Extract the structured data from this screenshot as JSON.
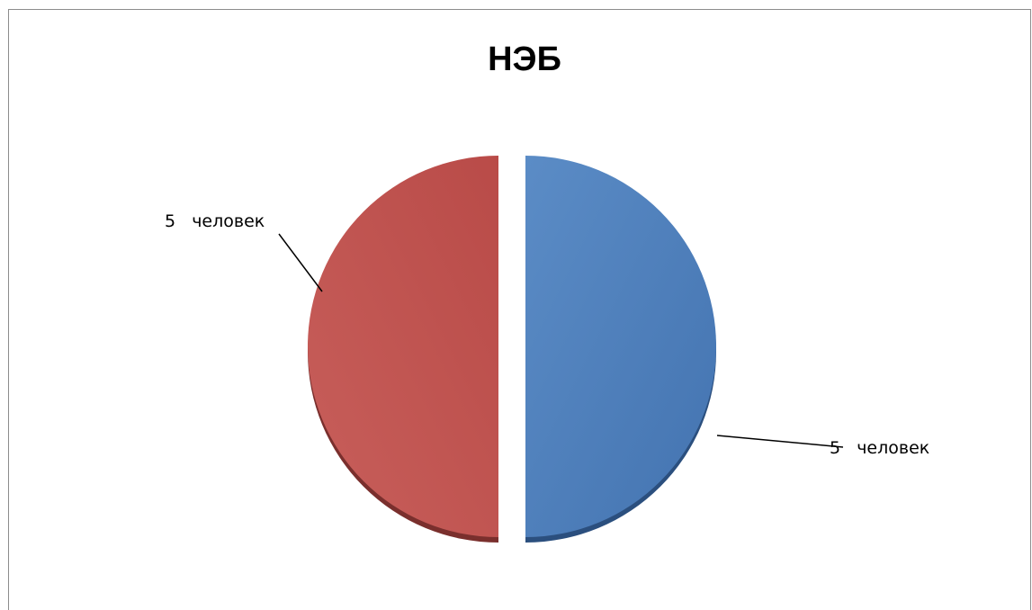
{
  "chart_data": {
    "type": "pie",
    "title": "НЭБ",
    "slices": [
      {
        "value": 5,
        "label": "5 человек",
        "color": "#4f81bd"
      },
      {
        "value": 5,
        "label": "5 человек",
        "color": "#c0504d"
      }
    ],
    "exploded": true,
    "legend": "none"
  }
}
